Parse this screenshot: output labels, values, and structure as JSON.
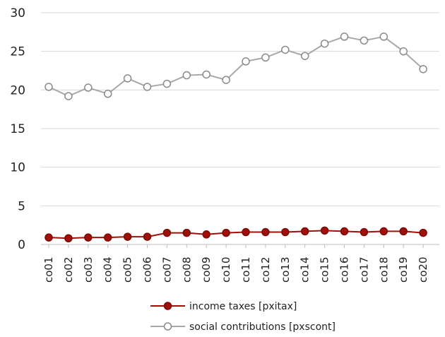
{
  "chart_data": {
    "type": "line",
    "categories": [
      "co01",
      "co02",
      "co03",
      "co04",
      "co05",
      "co06",
      "co07",
      "co08",
      "co09",
      "co10",
      "co11",
      "co12",
      "co13",
      "co14",
      "co15",
      "co16",
      "co17",
      "co18",
      "co19",
      "co20"
    ],
    "series": [
      {
        "name": "income taxes [pxitax]",
        "color": "#a01008",
        "marker_fill": "#a01008",
        "values": [
          0.9,
          0.8,
          0.9,
          0.9,
          1.0,
          1.0,
          1.5,
          1.5,
          1.3,
          1.5,
          1.6,
          1.6,
          1.6,
          1.7,
          1.8,
          1.7,
          1.6,
          1.7,
          1.7,
          1.5
        ]
      },
      {
        "name": "social contributions [pxscont]",
        "color": "#a8a8a8",
        "marker_fill": "#ffffff",
        "values": [
          20.4,
          19.2,
          20.3,
          19.5,
          21.5,
          20.4,
          20.8,
          21.9,
          22.0,
          21.3,
          23.7,
          24.2,
          25.2,
          24.4,
          26.0,
          26.9,
          26.4,
          26.9,
          25.0,
          22.7
        ]
      }
    ],
    "ylim": [
      0,
      30
    ],
    "yticks": [
      0,
      5,
      10,
      15,
      20,
      25,
      30
    ],
    "grid": "horizontal",
    "legend_position": "bottom-center",
    "title": "",
    "xlabel": "",
    "ylabel": ""
  }
}
